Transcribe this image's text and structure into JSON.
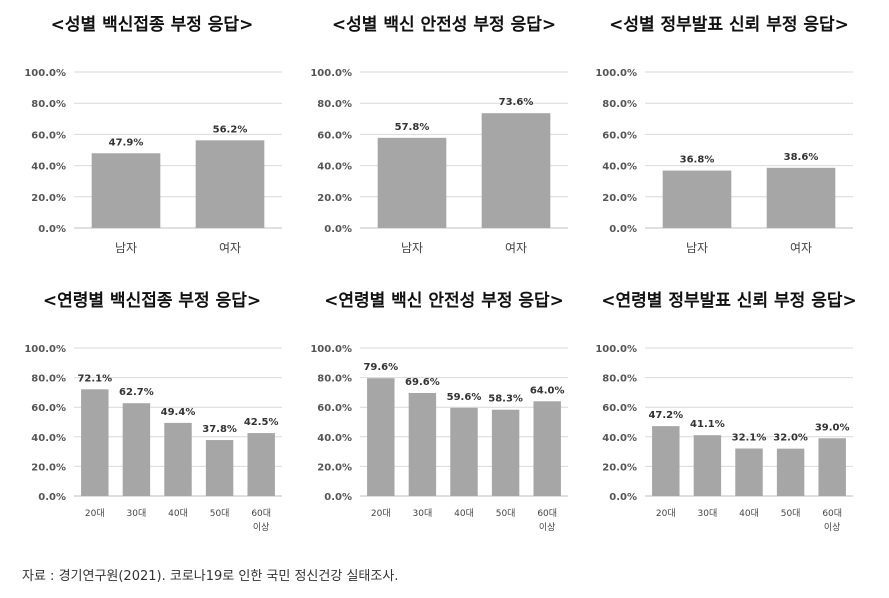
{
  "footer": "자료 : 경기연구원(2021). 코로나19로 인한 국민 정신건강 실태조사.",
  "bar_color": "#a6a6a6",
  "chart_data": [
    {
      "type": "bar",
      "title": "<성별 백신접종 부정 응답>",
      "categories": [
        "남자",
        "여자"
      ],
      "values": [
        47.9,
        56.2
      ],
      "ylim": [
        0,
        100
      ],
      "yticks": [
        "0.0%",
        "20.0%",
        "40.0%",
        "60.0%",
        "80.0%",
        "100.0%"
      ],
      "grid": true
    },
    {
      "type": "bar",
      "title": "<성별 백신 안전성 부정 응답>",
      "categories": [
        "남자",
        "여자"
      ],
      "values": [
        57.8,
        73.6
      ],
      "ylim": [
        0,
        100
      ],
      "yticks": [
        "0.0%",
        "20.0%",
        "40.0%",
        "60.0%",
        "80.0%",
        "100.0%"
      ],
      "grid": true
    },
    {
      "type": "bar",
      "title": "<성별 정부발표 신뢰 부정 응답>",
      "categories": [
        "남자",
        "여자"
      ],
      "values": [
        36.8,
        38.6
      ],
      "ylim": [
        0,
        100
      ],
      "yticks": [
        "0.0%",
        "20.0%",
        "40.0%",
        "60.0%",
        "80.0%",
        "100.0%"
      ],
      "grid": true
    },
    {
      "type": "bar",
      "title": "<연령별 백신접종 부정 응답>",
      "categories": [
        "20대",
        "30대",
        "40대",
        "50대",
        "60대 이상"
      ],
      "values": [
        72.1,
        62.7,
        49.4,
        37.8,
        42.5
      ],
      "ylim": [
        0,
        100
      ],
      "yticks": [
        "0.0%",
        "20.0%",
        "40.0%",
        "60.0%",
        "80.0%",
        "100.0%"
      ],
      "grid": true
    },
    {
      "type": "bar",
      "title": "<연령별 백신 안전성 부정 응답>",
      "categories": [
        "20대",
        "30대",
        "40대",
        "50대",
        "60대 이상"
      ],
      "values": [
        79.6,
        69.6,
        59.6,
        58.3,
        64.0
      ],
      "ylim": [
        0,
        100
      ],
      "yticks": [
        "0.0%",
        "20.0%",
        "40.0%",
        "60.0%",
        "80.0%",
        "100.0%"
      ],
      "grid": true
    },
    {
      "type": "bar",
      "title": "<연령별 정부발표 신뢰 부정 응답>",
      "categories": [
        "20대",
        "30대",
        "40대",
        "50대",
        "60대 이상"
      ],
      "values": [
        47.2,
        41.1,
        32.1,
        32.0,
        39.0
      ],
      "ylim": [
        0,
        100
      ],
      "yticks": [
        "0.0%",
        "20.0%",
        "40.0%",
        "60.0%",
        "80.0%",
        "100.0%"
      ],
      "grid": true
    }
  ]
}
